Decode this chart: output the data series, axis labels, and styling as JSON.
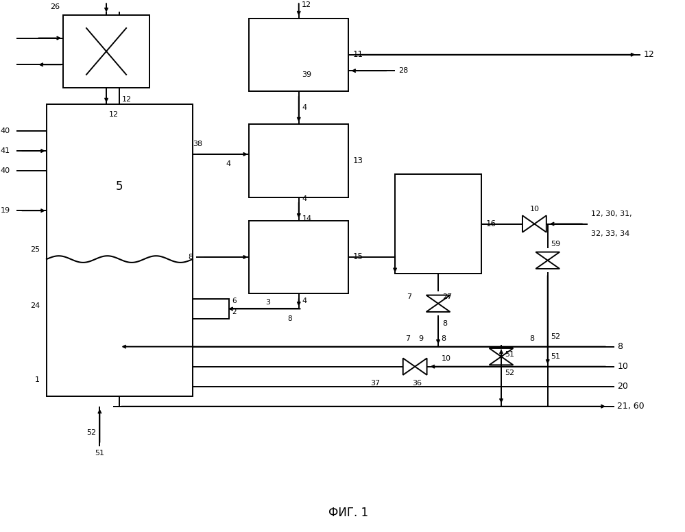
{
  "title": "ФИГ. 1",
  "bg_color": "#ffffff",
  "lc": "#000000",
  "lw": 1.4
}
